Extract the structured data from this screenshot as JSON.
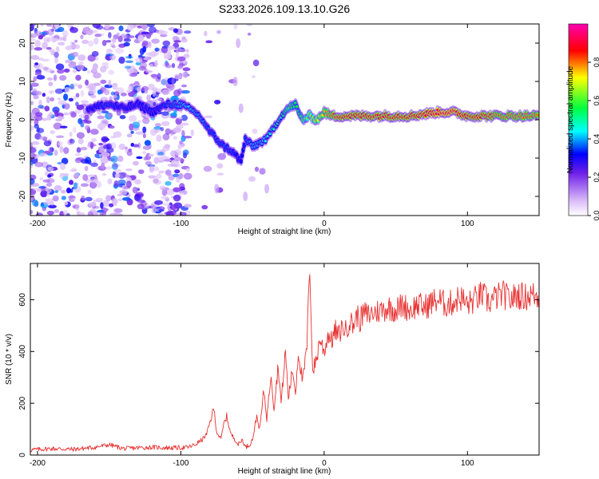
{
  "figure_title": "S233.2026.109.13.10.G26",
  "chart_data": [
    {
      "type": "heatmap",
      "title": "S233.2026.109.13.10.G26",
      "xlabel": "Height of straight line (km)",
      "ylabel": "Frequency (Hz)",
      "xlim": [
        -205,
        150
      ],
      "ylim": [
        -25,
        25
      ],
      "xticks": [
        -200,
        -100,
        0,
        100
      ],
      "yticks": [
        -20,
        -10,
        0,
        10,
        20
      ],
      "xtick_labels": [
        "-200",
        "-100",
        "0",
        "100"
      ],
      "ytick_labels": [
        "-20",
        "-10",
        "0",
        "10",
        "20"
      ],
      "colorbar": {
        "label": "Normalized spectral amplitude",
        "range": [
          0,
          1
        ],
        "ticks": [
          0.0,
          0.2,
          0.4,
          0.6,
          0.8
        ],
        "tick_labels": [
          "0.0",
          "0.2",
          "0.4",
          "0.6",
          "0.8"
        ],
        "colormap": [
          "#ffffff",
          "#a878e8",
          "#6a00e0",
          "#0000ff",
          "#00ffff",
          "#00ff00",
          "#ffff00",
          "#ff0000",
          "#ff00b0"
        ]
      },
      "dominant_frequency_track": {
        "x_km": [
          -165,
          -150,
          -140,
          -130,
          -120,
          -110,
          -100,
          -95,
          -90,
          -85,
          -80,
          -75,
          -70,
          -65,
          -60,
          -58,
          -55,
          -50,
          -45,
          -40,
          -35,
          -30,
          -25,
          -20,
          -18,
          -15,
          -10,
          -5,
          0,
          5,
          10,
          20,
          40,
          60,
          80,
          90,
          100,
          110,
          120,
          130,
          150
        ],
        "freq_hz": [
          3,
          4,
          3,
          4,
          2,
          4,
          4,
          3,
          2,
          0,
          -3,
          -5,
          -7,
          -8,
          -10,
          -11,
          -5,
          -7,
          -6,
          -5,
          -2,
          1,
          3,
          4,
          2,
          0,
          1,
          0,
          2,
          1,
          1,
          1,
          1,
          1,
          2,
          2,
          1,
          1,
          1,
          1,
          1
        ],
        "amplitude": [
          0.3,
          0.35,
          0.3,
          0.3,
          0.3,
          0.35,
          0.4,
          0.45,
          0.4,
          0.4,
          0.35,
          0.35,
          0.35,
          0.35,
          0.3,
          0.3,
          0.35,
          0.4,
          0.4,
          0.45,
          0.5,
          0.5,
          0.6,
          0.55,
          0.55,
          0.6,
          0.65,
          0.7,
          0.75,
          0.8,
          0.85,
          0.85,
          0.85,
          0.85,
          0.9,
          0.9,
          0.85,
          0.85,
          0.8,
          0.8,
          0.8
        ]
      }
    },
    {
      "type": "line",
      "xlabel": "Height of straight line (km)",
      "ylabel": "SNR (10 * v/v)",
      "xlim": [
        -205,
        150
      ],
      "ylim": [
        0,
        740
      ],
      "xticks": [
        -200,
        -100,
        0,
        100
      ],
      "yticks": [
        0,
        200,
        400,
        600
      ],
      "xtick_labels": [
        "-200",
        "-100",
        "0",
        "100"
      ],
      "ytick_labels": [
        "0",
        "200",
        "400",
        "600"
      ],
      "line_color": "#e83030",
      "series": [
        {
          "name": "SNR",
          "x": [
            -205,
            -190,
            -175,
            -160,
            -150,
            -140,
            -130,
            -120,
            -110,
            -100,
            -95,
            -90,
            -85,
            -82,
            -80,
            -77,
            -75,
            -72,
            -70,
            -68,
            -65,
            -62,
            -60,
            -57,
            -55,
            -52,
            -50,
            -47,
            -45,
            -42,
            -40,
            -37,
            -35,
            -32,
            -30,
            -27,
            -25,
            -22,
            -20,
            -18,
            -15,
            -12,
            -10,
            -8,
            -5,
            -3,
            0,
            3,
            5,
            8,
            10,
            13,
            15,
            18,
            20,
            23,
            25,
            28,
            30,
            35,
            40,
            45,
            50,
            55,
            60,
            65,
            70,
            75,
            80,
            85,
            90,
            95,
            100,
            105,
            110,
            115,
            120,
            125,
            130,
            135,
            140,
            145,
            150
          ],
          "y": [
            20,
            25,
            22,
            30,
            40,
            25,
            28,
            30,
            28,
            28,
            30,
            40,
            60,
            80,
            120,
            180,
            90,
            60,
            120,
            150,
            80,
            60,
            40,
            60,
            30,
            40,
            60,
            150,
            100,
            250,
            140,
            320,
            180,
            350,
            200,
            400,
            220,
            330,
            240,
            400,
            280,
            420,
            740,
            320,
            380,
            450,
            400,
            470,
            440,
            480,
            460,
            500,
            480,
            520,
            500,
            540,
            520,
            550,
            540,
            550,
            560,
            570,
            560,
            580,
            560,
            580,
            570,
            590,
            600,
            580,
            590,
            610,
            580,
            600,
            620,
            590,
            610,
            620,
            600,
            620,
            610,
            620,
            610
          ]
        }
      ]
    }
  ]
}
